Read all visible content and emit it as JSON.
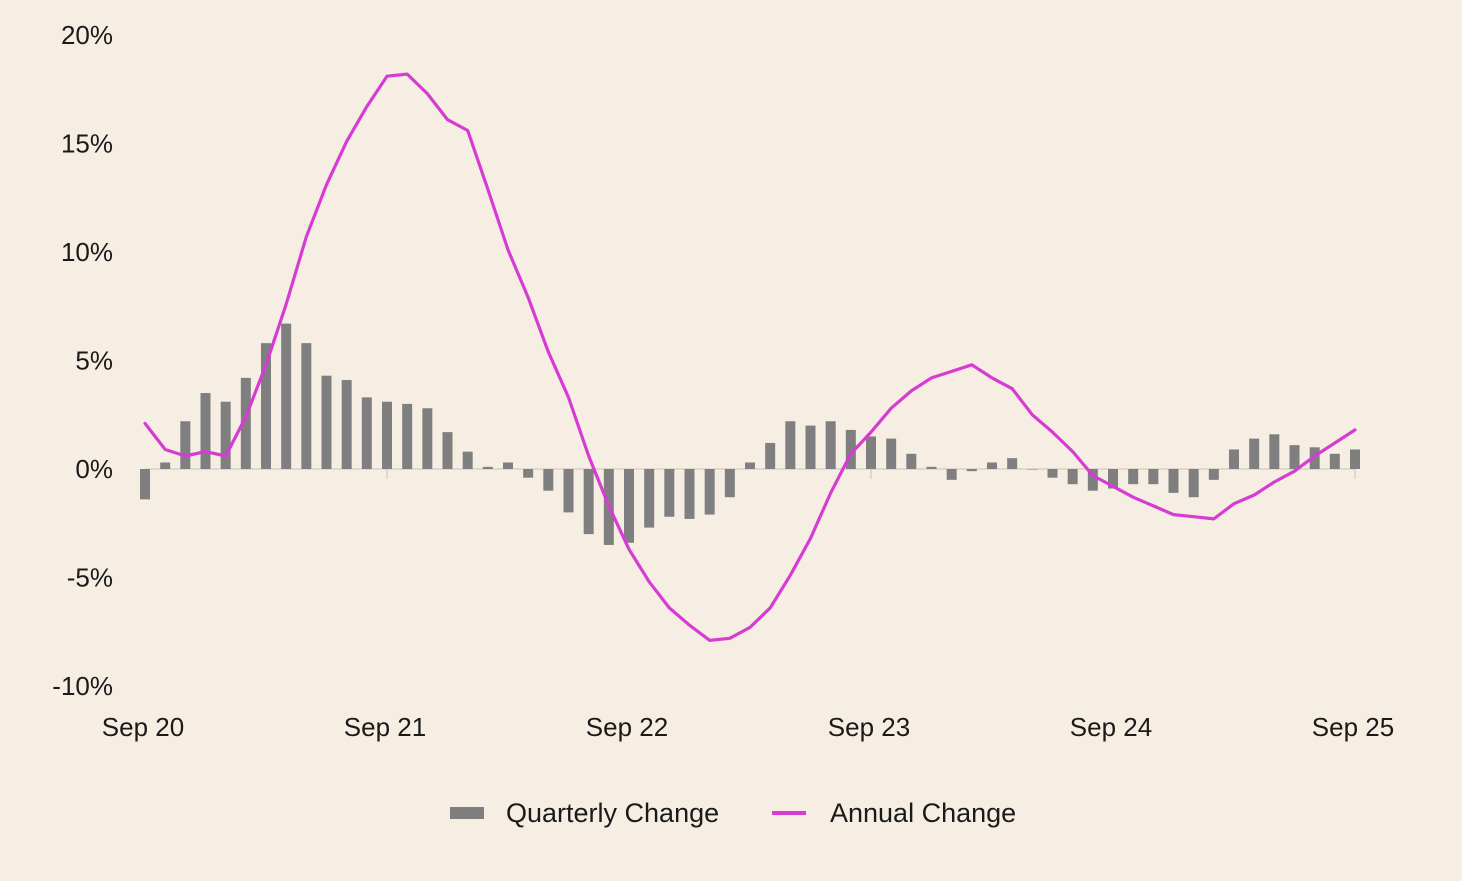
{
  "chart_data": {
    "type": "bar",
    "title": "",
    "xlabel": "",
    "ylabel": "",
    "ylim": [
      -10,
      20
    ],
    "y_ticks": [
      "20%",
      "15%",
      "10%",
      "5%",
      "0%",
      "-5%",
      "-10%"
    ],
    "y_tick_values": [
      20,
      15,
      10,
      5,
      0,
      -5,
      -10
    ],
    "x_ticks": [
      "Sep 20",
      "Sep 21",
      "Sep 22",
      "Sep 23",
      "Sep 24",
      "Sep 25"
    ],
    "x_tick_months": [
      0,
      12,
      24,
      36,
      48,
      60
    ],
    "grid": false,
    "legend_position": "bottom-center",
    "colors": {
      "quarterly": "#7F7F7F",
      "annual": "#D63BD4",
      "zero_line": "#D6D0C6",
      "background": "#F6EEE2"
    },
    "series": [
      {
        "name": "Quarterly Change",
        "type": "bar",
        "values": [
          -1.4,
          0.3,
          2.2,
          3.5,
          3.1,
          4.2,
          5.8,
          6.7,
          5.8,
          4.3,
          4.1,
          3.3,
          3.1,
          3.0,
          2.8,
          1.7,
          0.8,
          0.1,
          0.3,
          -0.4,
          -1.0,
          -2.0,
          -3.0,
          -3.5,
          -3.4,
          -2.7,
          -2.2,
          -2.3,
          -2.1,
          -1.3,
          0.3,
          1.2,
          2.2,
          2.0,
          2.2,
          1.8,
          1.5,
          1.4,
          0.7,
          0.1,
          -0.5,
          -0.1,
          0.3,
          0.5,
          0.0,
          -0.4,
          -0.7,
          -1.0,
          -0.9,
          -0.7,
          -0.7,
          -1.1,
          -1.3,
          -0.5,
          0.9,
          1.4,
          1.6,
          1.1,
          1.0,
          0.7,
          0.9
        ]
      },
      {
        "name": "Annual Change",
        "type": "line",
        "values": [
          2.1,
          0.9,
          0.6,
          0.8,
          0.6,
          2.4,
          4.8,
          7.6,
          10.7,
          13.1,
          15.1,
          16.7,
          18.1,
          18.2,
          17.3,
          16.1,
          15.6,
          12.9,
          10.1,
          7.9,
          5.4,
          3.3,
          0.6,
          -1.7,
          -3.7,
          -5.2,
          -6.4,
          -7.2,
          -7.9,
          -7.8,
          -7.3,
          -6.4,
          -4.9,
          -3.2,
          -1.1,
          0.7,
          1.7,
          2.8,
          3.6,
          4.2,
          4.5,
          4.8,
          4.2,
          3.7,
          2.5,
          1.7,
          0.8,
          -0.3,
          -0.8,
          -1.3,
          -1.7,
          -2.1,
          -2.2,
          -2.3,
          -1.6,
          -1.2,
          -0.6,
          -0.1,
          0.6,
          1.2,
          1.8
        ]
      }
    ]
  },
  "legend": {
    "quarterly_label": "Quarterly Change",
    "annual_label": "Annual Change"
  }
}
